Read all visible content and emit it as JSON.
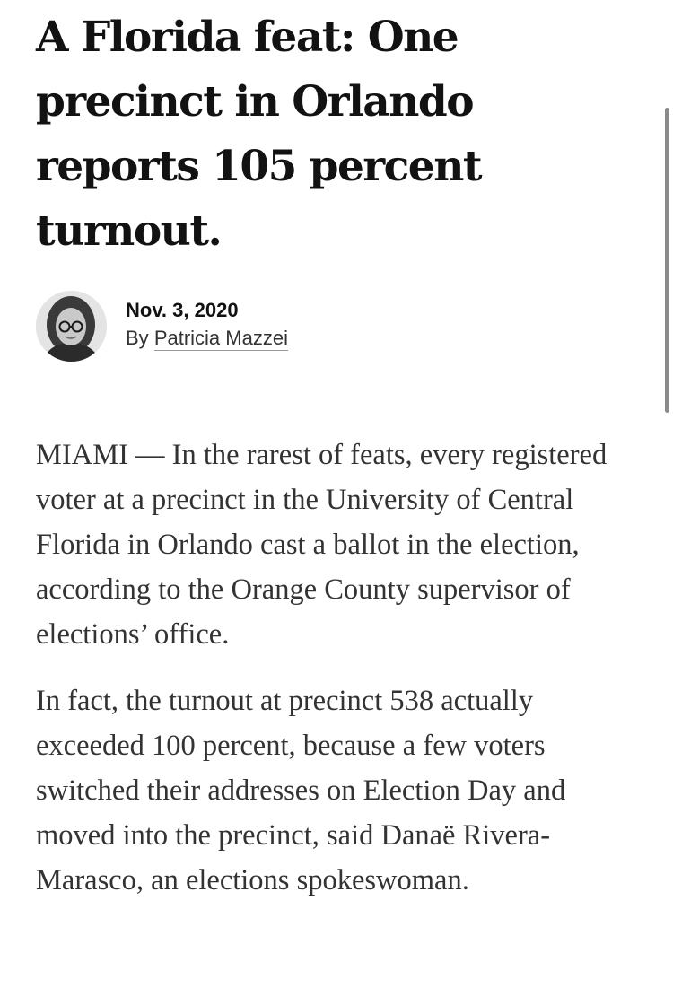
{
  "article": {
    "headline": "A Florida feat: One precinct in Orlando reports 105 percent turnout.",
    "date": "Nov. 3, 2020",
    "byline_prefix": "By",
    "author": "Patricia Mazzei",
    "paragraphs": [
      "MIAMI — In the rarest of feats, every registered voter at a precinct in the University of Central Florida in Orlando cast a ballot in the election, according to the Orange County supervisor of elections’ office.",
      "In fact, the turnout at precinct 538 actually exceeded 100 percent, because a few voters switched their addresses on Election Day and moved into the precinct, said Danaë Rivera-Marasco, an elections spokeswoman."
    ]
  },
  "icons": {
    "avatar": "author-portrait"
  }
}
